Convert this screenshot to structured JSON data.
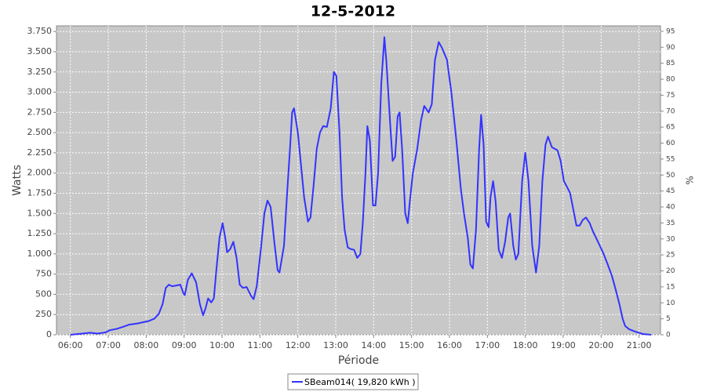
{
  "chart_data": {
    "type": "line",
    "title": "12-5-2012",
    "x_label": "Période",
    "y_label": "Watts",
    "y2_label": "%",
    "x": [
      "06:00",
      "06:19",
      "06:31",
      "06:43",
      "06:56",
      "07:02",
      "07:14",
      "07:24",
      "07:33",
      "07:46",
      "07:58",
      "08:04",
      "08:13",
      "08:20",
      "08:26",
      "08:31",
      "08:36",
      "08:41",
      "08:48",
      "08:54",
      "08:59",
      "09:01",
      "09:06",
      "09:12",
      "09:19",
      "09:25",
      "09:30",
      "09:34",
      "09:38",
      "09:43",
      "09:47",
      "09:51",
      "09:56",
      "10:01",
      "10:05",
      "10:08",
      "10:13",
      "10:18",
      "10:23",
      "10:28",
      "10:33",
      "10:39",
      "10:46",
      "10:50",
      "10:55",
      "11:02",
      "11:07",
      "11:12",
      "11:17",
      "11:23",
      "11:28",
      "11:31",
      "11:38",
      "11:43",
      "11:48",
      "11:51",
      "11:54",
      "12:00",
      "12:05",
      "12:10",
      "12:16",
      "12:20",
      "12:25",
      "12:30",
      "12:35",
      "12:40",
      "12:46",
      "12:52",
      "12:57",
      "13:01",
      "13:06",
      "13:10",
      "13:14",
      "13:19",
      "13:24",
      "13:29",
      "13:34",
      "13:39",
      "13:43",
      "13:47",
      "13:50",
      "13:54",
      "13:59",
      "14:03",
      "14:07",
      "14:12",
      "14:17",
      "14:20",
      "14:27",
      "14:30",
      "14:34",
      "14:38",
      "14:41",
      "14:45",
      "14:50",
      "14:54",
      "14:58",
      "15:02",
      "15:09",
      "15:15",
      "15:20",
      "15:27",
      "15:32",
      "15:37",
      "15:43",
      "15:48",
      "15:56",
      "16:03",
      "16:11",
      "16:18",
      "16:23",
      "16:29",
      "16:33",
      "16:37",
      "16:42",
      "16:47",
      "16:50",
      "16:54",
      "16:58",
      "17:02",
      "17:05",
      "17:09",
      "17:13",
      "17:18",
      "17:23",
      "17:28",
      "17:33",
      "17:36",
      "17:41",
      "17:45",
      "17:49",
      "17:55",
      "18:00",
      "18:05",
      "18:11",
      "18:17",
      "18:22",
      "18:27",
      "18:32",
      "18:36",
      "18:42",
      "18:51",
      "18:56",
      "19:01",
      "19:06",
      "19:11",
      "19:16",
      "19:21",
      "19:26",
      "19:31",
      "19:36",
      "19:42",
      "19:47",
      "19:52",
      "19:58",
      "20:04",
      "20:10",
      "20:17",
      "20:23",
      "20:29",
      "20:34",
      "20:38",
      "20:44",
      "20:54",
      "21:06",
      "21:19"
    ],
    "series": [
      {
        "name": "SBeam014( 19,820 kWh )",
        "color": "#3333ff",
        "values": [
          0,
          15,
          25,
          15,
          30,
          55,
          75,
          100,
          125,
          140,
          160,
          170,
          200,
          260,
          380,
          580,
          620,
          600,
          610,
          620,
          510,
          490,
          680,
          760,
          650,
          380,
          240,
          330,
          450,
          400,
          450,
          800,
          1200,
          1380,
          1200,
          1020,
          1060,
          1150,
          950,
          620,
          580,
          590,
          480,
          440,
          600,
          1100,
          1500,
          1660,
          1580,
          1130,
          800,
          770,
          1100,
          1750,
          2350,
          2750,
          2800,
          2500,
          2100,
          1700,
          1400,
          1450,
          1850,
          2300,
          2500,
          2580,
          2570,
          2800,
          3250,
          3200,
          2500,
          1700,
          1300,
          1080,
          1060,
          1050,
          950,
          1000,
          1400,
          2000,
          2580,
          2400,
          1600,
          1600,
          2000,
          3100,
          3680,
          3400,
          2500,
          2150,
          2200,
          2700,
          2750,
          2300,
          1500,
          1380,
          1700,
          2000,
          2300,
          2650,
          2830,
          2750,
          2850,
          3400,
          3620,
          3550,
          3400,
          3000,
          2400,
          1800,
          1500,
          1200,
          870,
          820,
          1300,
          2300,
          2720,
          2350,
          1400,
          1330,
          1700,
          1900,
          1650,
          1050,
          950,
          1150,
          1450,
          1500,
          1100,
          930,
          1000,
          1900,
          2250,
          1900,
          1100,
          770,
          1100,
          1900,
          2350,
          2450,
          2320,
          2280,
          2150,
          1900,
          1830,
          1750,
          1550,
          1350,
          1350,
          1420,
          1450,
          1380,
          1280,
          1200,
          1100,
          1000,
          880,
          730,
          560,
          380,
          200,
          110,
          70,
          40,
          10,
          0
        ]
      }
    ],
    "xlim": [
      "05:38",
      "21:34"
    ],
    "xticks": [
      "06:00",
      "07:00",
      "08:00",
      "09:00",
      "10:00",
      "11:00",
      "12:00",
      "13:00",
      "14:00",
      "15:00",
      "16:00",
      "17:00",
      "18:00",
      "19:00",
      "20:00",
      "21:00"
    ],
    "ylim": [
      0,
      3820
    ],
    "yticks": [
      0,
      250,
      500,
      750,
      {
        "value": 1000,
        "label": "1.000"
      },
      {
        "value": 1250,
        "label": "1.250"
      },
      {
        "value": 1500,
        "label": "1.500"
      },
      {
        "value": 1750,
        "label": "1.750"
      },
      {
        "value": 2000,
        "label": "2.000"
      },
      {
        "value": 2250,
        "label": "2.250"
      },
      {
        "value": 2500,
        "label": "2.500"
      },
      {
        "value": 2750,
        "label": "2.750"
      },
      {
        "value": 3000,
        "label": "3.000"
      },
      {
        "value": 3250,
        "label": "3.250"
      },
      {
        "value": 3500,
        "label": "3.500"
      },
      {
        "value": 3750,
        "label": "3.750"
      }
    ],
    "y2lim": [
      0,
      96.7
    ],
    "y2ticks": [
      0,
      5,
      10,
      15,
      20,
      25,
      30,
      35,
      40,
      45,
      50,
      55,
      60,
      65,
      70,
      75,
      80,
      85,
      90,
      95
    ],
    "grid": true,
    "legend": "bottom"
  }
}
